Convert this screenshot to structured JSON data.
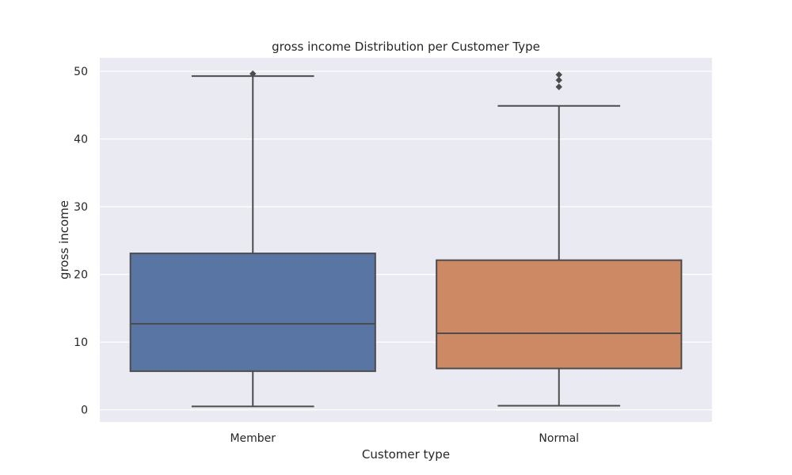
{
  "chart_data": {
    "type": "box",
    "title": "gross income Distribution per Customer Type",
    "xlabel": "Customer type",
    "ylabel": "gross income",
    "ylim": [
      -1.8,
      52
    ],
    "yticks": [
      0,
      10,
      20,
      30,
      40,
      50
    ],
    "grid": true,
    "categories": [
      "Member",
      "Normal"
    ],
    "boxes": [
      {
        "category": "Member",
        "color": "#5975a4",
        "whisker_low": 0.5,
        "q1": 5.7,
        "median": 12.7,
        "q3": 23.1,
        "whisker_high": 49.3,
        "outliers": [
          49.65
        ]
      },
      {
        "category": "Normal",
        "color": "#cc8963",
        "whisker_low": 0.6,
        "q1": 6.1,
        "median": 11.3,
        "q3": 22.1,
        "whisker_high": 44.9,
        "outliers": [
          47.7,
          48.7,
          49.5
        ]
      }
    ],
    "colors": {
      "plot_background": "#eaeaf2",
      "grid": "#ffffff",
      "box_edge": "#4c4c4c"
    }
  }
}
